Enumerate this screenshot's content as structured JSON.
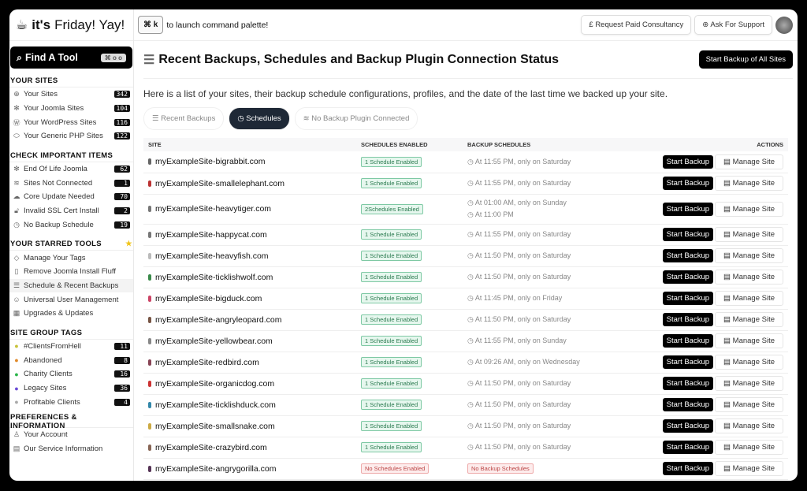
{
  "brand": {
    "bold": "it's",
    "rest": "Friday! Yay!"
  },
  "find_tool": {
    "label": "Find A Tool",
    "shortcut": "⌘ o o"
  },
  "header": {
    "kbd": "⌘ k",
    "hint": "to launch command palette!",
    "consult": "£ Request Paid Consultancy",
    "support": "Ask For Support"
  },
  "sidebar": [
    {
      "title": "YOUR SITES",
      "items": [
        {
          "icon": "globe-icon",
          "glyph": "⊕",
          "label": "Your Sites",
          "count": "342"
        },
        {
          "icon": "joomla-icon",
          "glyph": "✻",
          "label": "Your Joomla Sites",
          "count": "104"
        },
        {
          "icon": "wordpress-icon",
          "glyph": "Ⓦ",
          "label": "Your WordPress Sites",
          "count": "116"
        },
        {
          "icon": "php-icon",
          "glyph": "⬭",
          "label": "Your Generic PHP Sites",
          "count": "122"
        }
      ]
    },
    {
      "title": "CHECK IMPORTANT ITEMS",
      "items": [
        {
          "icon": "joomla-icon",
          "glyph": "✻",
          "label": "End Of Life Joomla",
          "count": "62"
        },
        {
          "icon": "wifi-off-icon",
          "glyph": "≋",
          "label": "Sites Not Connected",
          "count": "1"
        },
        {
          "icon": "cloud-upload-icon",
          "glyph": "☁",
          "label": "Core Update Needed",
          "count": "70"
        },
        {
          "icon": "lock-open-icon",
          "glyph": "🔓︎",
          "label": "Invalid SSL Cert Install",
          "count": "2"
        },
        {
          "icon": "clock-icon",
          "glyph": "◷",
          "label": "No Backup Schedule",
          "count": "19"
        }
      ]
    },
    {
      "title": "YOUR STARRED TOOLS",
      "star": true,
      "items": [
        {
          "icon": "tag-icon",
          "glyph": "◇",
          "label": "Manage Your Tags"
        },
        {
          "icon": "trash-icon",
          "glyph": "▯",
          "label": "Remove Joomla Install Fluff"
        },
        {
          "icon": "database-icon",
          "glyph": "☰",
          "label": "Schedule & Recent Backups",
          "active": true
        },
        {
          "icon": "users-icon",
          "glyph": "☺",
          "label": "Universal User Management"
        },
        {
          "icon": "packages-icon",
          "glyph": "▦",
          "label": "Upgrades & Updates"
        }
      ]
    },
    {
      "title": "SITE GROUP TAGS",
      "items": [
        {
          "icon": "tag-icon",
          "glyph": "●",
          "color": "#c8c23a",
          "label": "#ClientsFromHell",
          "count": "11"
        },
        {
          "icon": "tag-icon",
          "glyph": "●",
          "color": "#e08a2a",
          "label": "Abandoned",
          "count": "8"
        },
        {
          "icon": "tag-icon",
          "glyph": "●",
          "color": "#2bb54a",
          "label": "Charity Clients",
          "count": "16"
        },
        {
          "icon": "tag-icon",
          "glyph": "●",
          "color": "#6a4bd6",
          "label": "Legacy Sites",
          "count": "36"
        },
        {
          "icon": "tag-icon",
          "glyph": "●",
          "color": "#aaaaaa",
          "label": "Profitable Clients",
          "count": "4"
        }
      ]
    },
    {
      "title": "PREFERENCES & INFORMATION",
      "items": [
        {
          "icon": "user-icon",
          "glyph": "♙",
          "label": "Your Account"
        },
        {
          "icon": "clipboard-icon",
          "glyph": "▤",
          "label": "Our Service Information"
        }
      ]
    }
  ],
  "main": {
    "title": "Recent Backups, Schedules and Backup Plugin Connection Status",
    "start_all": "Start Backup of All Sites",
    "description": "Here is a list of your sites, their backup schedule configurations, profiles, and the date of the last time we backed up your site.",
    "tabs": [
      {
        "label": "Recent Backups",
        "glyph": "☰"
      },
      {
        "label": "Schedules",
        "glyph": "◷",
        "active": true
      },
      {
        "label": "No Backup Plugin Connected",
        "glyph": "≋"
      }
    ]
  },
  "table": {
    "headers": [
      "SITE",
      "SCHEDULES ENABLED",
      "BACKUP SCHEDULES",
      "ACTIONS"
    ],
    "start_label": "Start Backup",
    "manage_label": "Manage Site",
    "rows": [
      {
        "site": "myExampleSite-bigrabbit.com",
        "color": "#666",
        "enabled": "1 Schedule Enabled",
        "schedules": [
          "At 11:55 PM, only on Saturday"
        ]
      },
      {
        "site": "myExampleSite-smallelephant.com",
        "color": "#b33",
        "enabled": "1 Schedule Enabled",
        "schedules": [
          "At 11:55 PM, only on Saturday"
        ]
      },
      {
        "site": "myExampleSite-heavytiger.com",
        "color": "#777",
        "enabled": "2Schedules Enabled",
        "schedules": [
          "At 01:00 AM, only on Sunday",
          "At 11:00 PM"
        ]
      },
      {
        "site": "myExampleSite-happycat.com",
        "color": "#777",
        "enabled": "1 Schedule Enabled",
        "schedules": [
          "At 11:55 PM, only on Saturday"
        ]
      },
      {
        "site": "myExampleSite-heavyfish.com",
        "color": "#bbb",
        "enabled": "1 Schedule Enabled",
        "schedules": [
          "At 11:50 PM, only on Saturday"
        ]
      },
      {
        "site": "myExampleSite-ticklishwolf.com",
        "color": "#3a8a4a",
        "enabled": "1 Schedule Enabled",
        "schedules": [
          "At 11:50 PM, only on Saturday"
        ]
      },
      {
        "site": "myExampleSite-bigduck.com",
        "color": "#c46",
        "enabled": "1 Schedule Enabled",
        "schedules": [
          "At 11:45 PM, only on Friday"
        ]
      },
      {
        "site": "myExampleSite-angryleopard.com",
        "color": "#754",
        "enabled": "1 Schedule Enabled",
        "schedules": [
          "At 11:50 PM, only on Saturday"
        ]
      },
      {
        "site": "myExampleSite-yellowbear.com",
        "color": "#888",
        "enabled": "1 Schedule Enabled",
        "schedules": [
          "At 11:55 PM, only on Sunday"
        ]
      },
      {
        "site": "myExampleSite-redbird.com",
        "color": "#845",
        "enabled": "1 Schedule Enabled",
        "schedules": [
          "At 09:26 AM, only on Wednesday"
        ]
      },
      {
        "site": "myExampleSite-organicdog.com",
        "color": "#c33",
        "enabled": "1 Schedule Enabled",
        "schedules": [
          "At 11:50 PM, only on Saturday"
        ]
      },
      {
        "site": "myExampleSite-ticklishduck.com",
        "color": "#38a",
        "enabled": "1 Schedule Enabled",
        "schedules": [
          "At 11:50 PM, only on Saturday"
        ]
      },
      {
        "site": "myExampleSite-smallsnake.com",
        "color": "#ca4",
        "enabled": "1 Schedule Enabled",
        "schedules": [
          "At 11:50 PM, only on Saturday"
        ]
      },
      {
        "site": "myExampleSite-crazybird.com",
        "color": "#865",
        "enabled": "1 Schedule Enabled",
        "schedules": [
          "At 11:50 PM, only on Saturday"
        ]
      },
      {
        "site": "myExampleSite-angrygorilla.com",
        "color": "#535",
        "enabled": "No Schedules Enabled",
        "no_schedule": "No Backup Schedules",
        "schedules": [],
        "error": true
      }
    ]
  }
}
